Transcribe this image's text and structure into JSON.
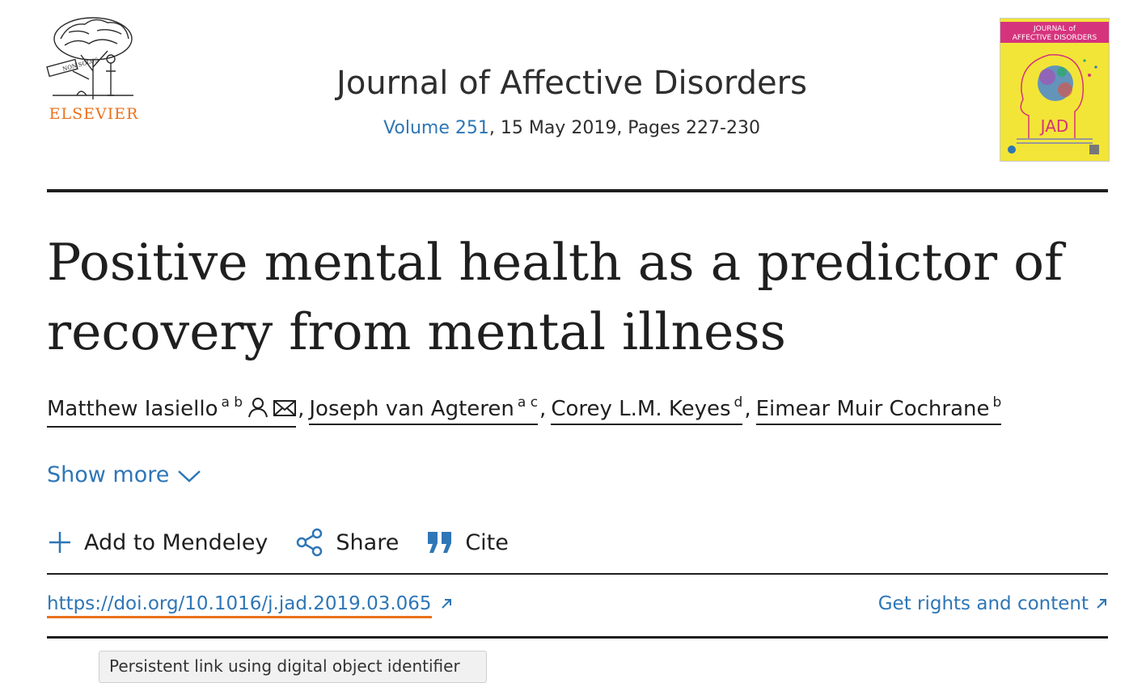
{
  "publisher": {
    "name": "ELSEVIER"
  },
  "journal": {
    "title": "Journal of Affective Disorders",
    "volume_link": "Volume 251",
    "issue_rest": ", 15 May 2019, Pages 227-230"
  },
  "cover": {
    "title_line1": "JOURNAL of",
    "title_line2": "AFFECTIVE DISORDERS",
    "abbrev": "JAD"
  },
  "article": {
    "title_line1": "Positive mental health as a predictor of",
    "title_line2": "recovery from mental illness"
  },
  "authors": [
    {
      "name": "Matthew Iasiello",
      "sup": "a b",
      "icons": [
        "person-icon",
        "email-icon"
      ]
    },
    {
      "name": "Joseph van Agteren",
      "sup": "a c"
    },
    {
      "name": "Corey L.M. Keyes",
      "sup": "d"
    },
    {
      "name": "Eimear Muir Cochrane",
      "sup": "b"
    }
  ],
  "show_more": "Show more",
  "actions": {
    "add_mendeley": "Add to Mendeley",
    "share": "Share",
    "cite": "Cite"
  },
  "doi": "https://doi.org/10.1016/j.jad.2019.03.065",
  "rights": "Get rights and content",
  "tooltip": "Persistent link using digital object identifier",
  "colors": {
    "link_blue": "#2e76b6",
    "elsevier_orange": "#e9711c",
    "text_dark": "#1f1f1f",
    "cover_yellow": "#f2e537",
    "cover_magenta": "#d6337d"
  }
}
